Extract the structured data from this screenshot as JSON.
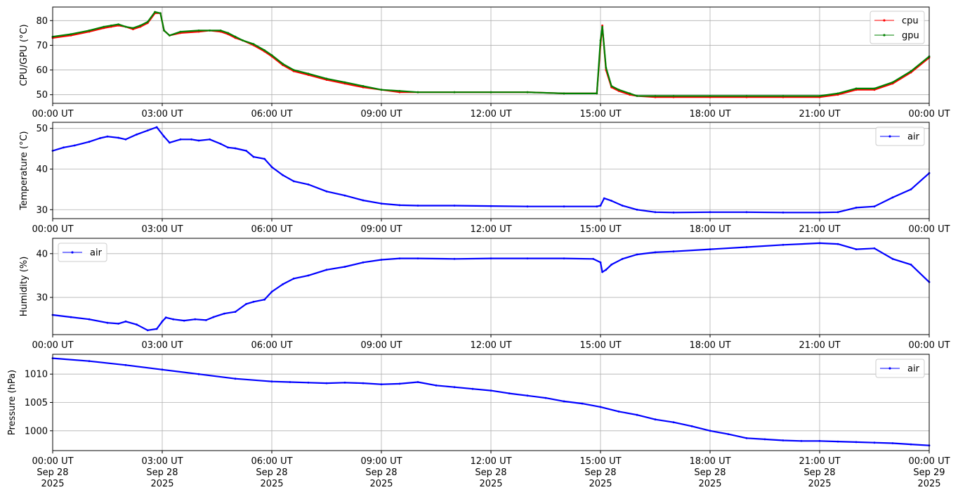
{
  "chart_data": [
    {
      "type": "line",
      "ylabel": "CPU/GPU (°C)",
      "ylim": [
        46.5,
        85.5
      ],
      "yticks": [
        50,
        60,
        70,
        80
      ],
      "xticks": [
        "00:00 UT",
        "03:00 UT",
        "06:00 UT",
        "09:00 UT",
        "12:00 UT",
        "15:00 UT",
        "18:00 UT",
        "21:00 UT",
        "00:00 UT"
      ],
      "xlim_hours": [
        0,
        24
      ],
      "grid": true,
      "legend": "top-right",
      "series": [
        {
          "name": "cpu",
          "color": "#ff0000",
          "x": [
            0,
            0.5,
            1,
            1.4,
            1.6,
            1.8,
            2,
            2.2,
            2.4,
            2.6,
            2.8,
            2.95,
            3.05,
            3.2,
            3.5,
            4,
            4.3,
            4.6,
            4.8,
            5,
            5.2,
            5.5,
            5.8,
            6,
            6.3,
            6.6,
            7,
            7.5,
            8,
            8.5,
            9,
            9.5,
            10,
            11,
            12,
            13,
            14,
            14.9,
            15,
            15.05,
            15.15,
            15.3,
            15.5,
            15.8,
            16,
            16.5,
            17,
            18,
            19,
            20,
            21,
            21.5,
            22,
            22.5,
            23,
            23.5,
            24
          ],
          "y": [
            73,
            74,
            75.5,
            77,
            77.5,
            78,
            77.5,
            76.5,
            77.5,
            79,
            83,
            83,
            76,
            74,
            75,
            75.5,
            76,
            75.5,
            74.5,
            73,
            72,
            70,
            67.5,
            65.5,
            62,
            59.5,
            58,
            56,
            54.5,
            53,
            52,
            51,
            51,
            51,
            51,
            51,
            50.5,
            50.5,
            70,
            78,
            60,
            53,
            51.5,
            50,
            49.5,
            49,
            49,
            49,
            49,
            49,
            49,
            50,
            52,
            52,
            54.5,
            59,
            65
          ]
        },
        {
          "name": "gpu",
          "color": "#008000",
          "x": [
            0,
            0.5,
            1,
            1.4,
            1.6,
            1.8,
            2,
            2.2,
            2.4,
            2.6,
            2.8,
            2.95,
            3.05,
            3.2,
            3.5,
            4,
            4.3,
            4.6,
            4.8,
            5,
            5.2,
            5.5,
            5.8,
            6,
            6.3,
            6.6,
            7,
            7.5,
            8,
            8.5,
            9,
            9.5,
            10,
            11,
            12,
            13,
            14,
            14.9,
            15,
            15.05,
            15.15,
            15.3,
            15.5,
            15.8,
            16,
            16.5,
            17,
            18,
            19,
            20,
            21,
            21.5,
            22,
            22.5,
            23,
            23.5,
            24
          ],
          "y": [
            73.5,
            74.5,
            76,
            77.5,
            78,
            78.5,
            77.5,
            77,
            78,
            79.5,
            83.5,
            83,
            76,
            74,
            75.5,
            76,
            76,
            76,
            75,
            73.5,
            72,
            70.5,
            68,
            66,
            62.5,
            60,
            58.5,
            56.5,
            55,
            53.5,
            52,
            51.5,
            51,
            51,
            51,
            51,
            50.5,
            50.5,
            72,
            77.5,
            61,
            53.5,
            52,
            50.5,
            49.5,
            49.5,
            49.5,
            49.5,
            49.5,
            49.5,
            49.5,
            50.5,
            52.5,
            52.5,
            55,
            59.5,
            65.5
          ]
        }
      ]
    },
    {
      "type": "line",
      "ylabel": "Temperature (°C)",
      "ylim": [
        27.8,
        51.5
      ],
      "yticks": [
        30,
        40,
        50
      ],
      "xticks": [
        "00:00 UT",
        "03:00 UT",
        "06:00 UT",
        "09:00 UT",
        "12:00 UT",
        "15:00 UT",
        "18:00 UT",
        "21:00 UT",
        "00:00 UT"
      ],
      "xlim_hours": [
        0,
        24
      ],
      "grid": true,
      "legend": "top-right",
      "series": [
        {
          "name": "air",
          "color": "#0000ff",
          "x": [
            0,
            0.3,
            0.6,
            1,
            1.3,
            1.5,
            1.8,
            2,
            2.3,
            2.6,
            2.85,
            3.05,
            3.2,
            3.5,
            3.8,
            4,
            4.3,
            4.6,
            4.8,
            5,
            5.3,
            5.5,
            5.8,
            6,
            6.3,
            6.6,
            7,
            7.5,
            8,
            8.5,
            9,
            9.5,
            10,
            11,
            12,
            13,
            14,
            14.9,
            15,
            15.1,
            15.3,
            15.6,
            16,
            16.5,
            17,
            18,
            19,
            20,
            21,
            21.5,
            22,
            22.5,
            23,
            23.5,
            24
          ],
          "y": [
            44.5,
            45.3,
            45.8,
            46.7,
            47.6,
            48,
            47.7,
            47.3,
            48.5,
            49.5,
            50.3,
            48,
            46.5,
            47.3,
            47.3,
            47,
            47.3,
            46.2,
            45.3,
            45.1,
            44.5,
            43,
            42.5,
            40.5,
            38.5,
            37,
            36.2,
            34.5,
            33.5,
            32.3,
            31.5,
            31.1,
            31,
            31,
            30.9,
            30.8,
            30.8,
            30.8,
            31,
            32.8,
            32.2,
            31,
            30,
            29.4,
            29.3,
            29.4,
            29.4,
            29.3,
            29.3,
            29.4,
            30.5,
            30.8,
            33,
            35,
            39
          ]
        }
      ]
    },
    {
      "type": "line",
      "ylabel": "Humidity (%)",
      "ylim": [
        21.5,
        43.5
      ],
      "yticks": [
        30,
        40
      ],
      "xticks": [
        "00:00 UT",
        "03:00 UT",
        "06:00 UT",
        "09:00 UT",
        "12:00 UT",
        "15:00 UT",
        "18:00 UT",
        "21:00 UT",
        "00:00 UT"
      ],
      "xlim_hours": [
        0,
        24
      ],
      "grid": true,
      "legend": "top-left",
      "series": [
        {
          "name": "air",
          "color": "#0000ff",
          "x": [
            0,
            0.5,
            1,
            1.5,
            1.8,
            2,
            2.3,
            2.6,
            2.85,
            3,
            3.1,
            3.3,
            3.6,
            3.9,
            4.2,
            4.4,
            4.7,
            5,
            5.3,
            5.5,
            5.8,
            6,
            6.3,
            6.6,
            7,
            7.5,
            8,
            8.5,
            9,
            9.5,
            10,
            11,
            12,
            13,
            14,
            14.8,
            15,
            15.05,
            15.15,
            15.3,
            15.6,
            16,
            16.5,
            17,
            18,
            19,
            20,
            21,
            21.5,
            22,
            22.5,
            23,
            23.5,
            24
          ],
          "y": [
            26,
            25.5,
            25,
            24.2,
            24,
            24.5,
            23.8,
            22.5,
            22.8,
            24.5,
            25.4,
            25,
            24.7,
            25,
            24.8,
            25.5,
            26.3,
            26.7,
            28.5,
            29,
            29.5,
            31.3,
            33,
            34.3,
            35,
            36.3,
            37,
            38,
            38.6,
            38.9,
            38.9,
            38.8,
            38.9,
            38.9,
            38.9,
            38.8,
            38,
            35.8,
            36.3,
            37.5,
            38.8,
            39.8,
            40.3,
            40.5,
            41,
            41.5,
            42,
            42.4,
            42.2,
            41,
            41.2,
            38.8,
            37.5,
            33.5
          ]
        }
      ]
    },
    {
      "type": "line",
      "ylabel": "Pressure (hPa)",
      "ylim": [
        996.5,
        1013.5
      ],
      "yticks": [
        1000,
        1005,
        1010
      ],
      "xticks": [
        "00:00 UT\nSep 28\n2025",
        "03:00 UT\nSep 28\n2025",
        "06:00 UT\nSep 28\n2025",
        "09:00 UT\nSep 28\n2025",
        "12:00 UT\nSep 28\n2025",
        "15:00 UT\nSep 28\n2025",
        "18:00 UT\nSep 28\n2025",
        "21:00 UT\nSep 28\n2025",
        "00:00 UT\nSep 29\n2025"
      ],
      "xlim_hours": [
        0,
        24
      ],
      "grid": true,
      "legend": "top-right",
      "series": [
        {
          "name": "air",
          "color": "#0000ff",
          "x": [
            0,
            1,
            2,
            3,
            4,
            5,
            6,
            6.5,
            7,
            7.5,
            8,
            8.5,
            9,
            9.5,
            10,
            10.5,
            11,
            11.5,
            12,
            12.5,
            13,
            13.5,
            14,
            14.5,
            15,
            15.5,
            16,
            16.5,
            17,
            17.5,
            18,
            18.5,
            19,
            19.5,
            20,
            20.5,
            21,
            21.5,
            22,
            22.5,
            23,
            23.5,
            24
          ],
          "y": [
            1012.8,
            1012.3,
            1011.6,
            1010.8,
            1010,
            1009.2,
            1008.7,
            1008.6,
            1008.5,
            1008.4,
            1008.5,
            1008.4,
            1008.2,
            1008.3,
            1008.6,
            1008,
            1007.7,
            1007.4,
            1007.1,
            1006.6,
            1006.2,
            1005.8,
            1005.2,
            1004.8,
            1004.2,
            1003.4,
            1002.8,
            1002,
            1001.5,
            1000.8,
            1000,
            999.4,
            998.7,
            998.5,
            998.3,
            998.2,
            998.2,
            998.1,
            998,
            997.9,
            997.8,
            997.6,
            997.4
          ]
        }
      ]
    }
  ]
}
